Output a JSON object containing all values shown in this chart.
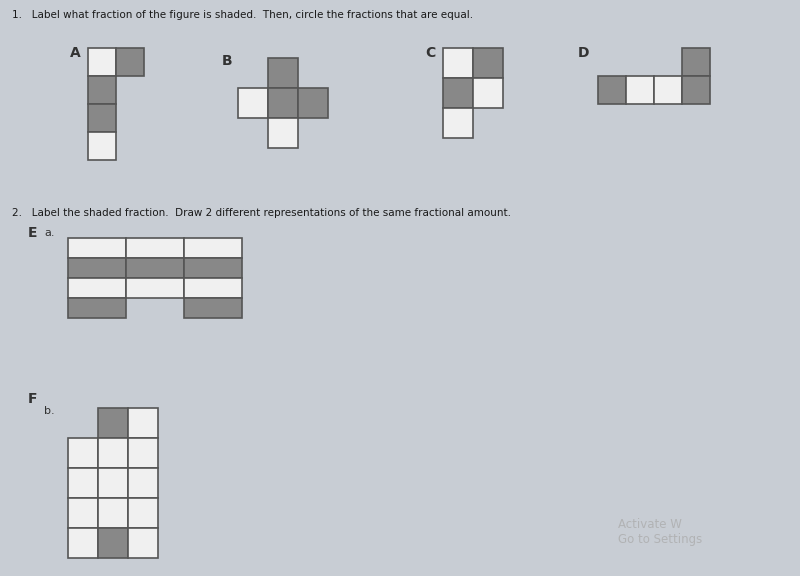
{
  "bg_color": "#c8cdd4",
  "title1": "1.   Label what fraction of the figure is shaded.  Then, circle the fractions that are equal.",
  "title2": "2.   Label the shaded fraction.  Draw 2 different representations of the same fractional amount.",
  "gray_shade": "#888888",
  "white_fill": "#f0f0f0",
  "edge_color": "#555555",
  "watermark": "Activate W\nGo to Settings"
}
